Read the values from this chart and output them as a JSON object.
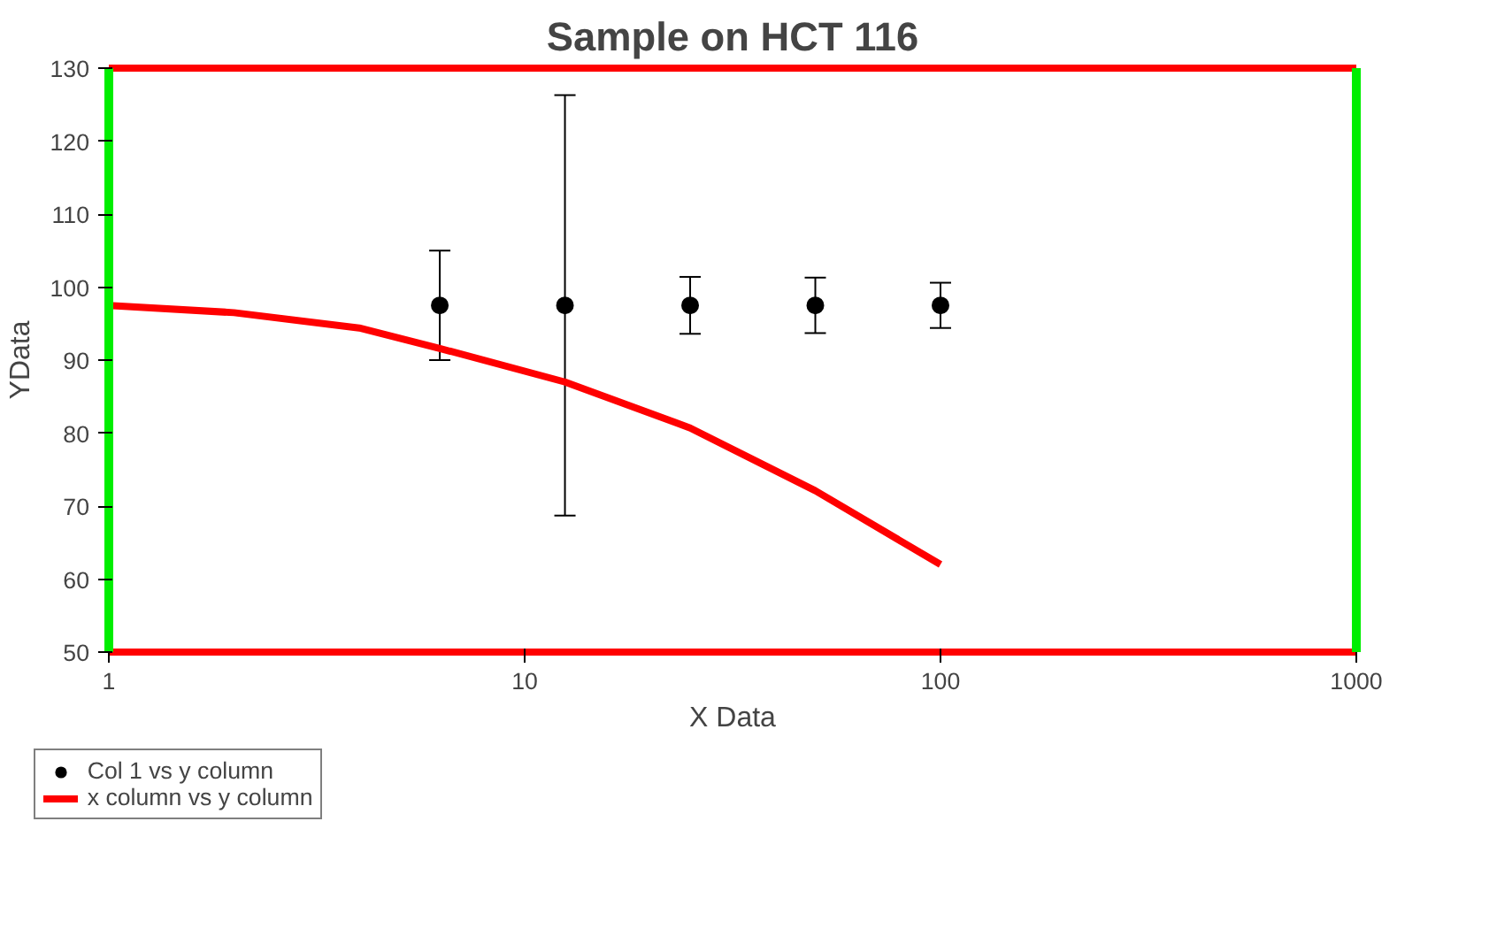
{
  "chart_data": {
    "type": "scatter",
    "title": "Sample on HCT 116",
    "xlabel": "X Data",
    "ylabel": "YData",
    "log": "x",
    "xlim": [
      1,
      1000
    ],
    "xticks": [
      1,
      10,
      100,
      1000
    ],
    "ylim": [
      50,
      130
    ],
    "yticks": [
      50,
      60,
      70,
      80,
      90,
      100,
      110,
      120,
      130
    ],
    "grid": false,
    "legend": "bottom left",
    "series": [
      {
        "name": "Col 1 vs y column",
        "color": "#000000",
        "marker": "circle",
        "x": [
          6.25,
          12.5,
          25,
          50,
          100
        ],
        "values": [
          97.5,
          97.5,
          97.5,
          97.5,
          97.5
        ],
        "errors": [
          7.5,
          28.8,
          3.9,
          3.8,
          3.1
        ]
      },
      {
        "name": "x column vs y column",
        "type": "line",
        "color": "#ff0000",
        "marker": "none",
        "line_style": "solid",
        "x": [
          1,
          2,
          4,
          6.25,
          12.5,
          25,
          50,
          100
        ],
        "values": [
          97.5,
          96.5,
          94.4,
          91.6,
          87,
          80.7,
          72.1,
          62
        ]
      }
    ]
  }
}
